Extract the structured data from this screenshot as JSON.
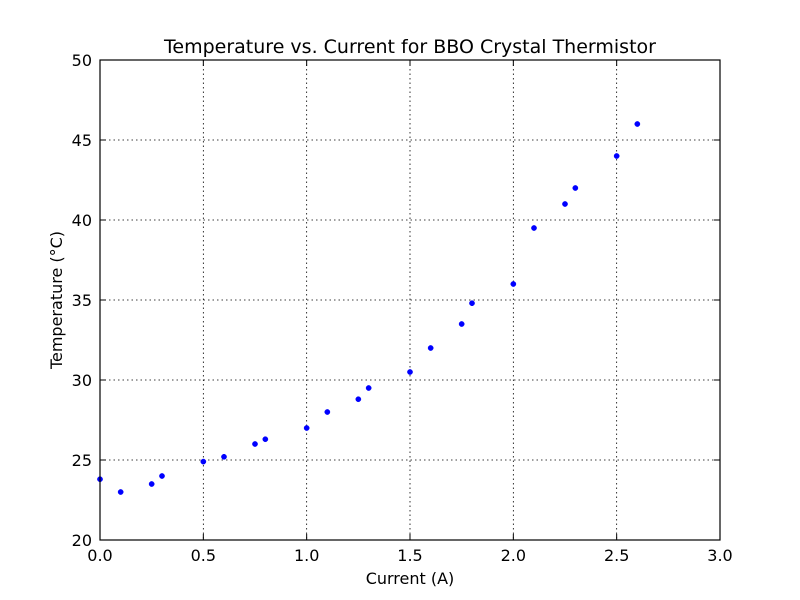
{
  "chart_data": {
    "type": "scatter",
    "title": "Temperature vs. Current for BBO Crystal Thermistor",
    "xlabel": "Current (A)",
    "ylabel": "Temperature (°C)",
    "xlim": [
      0.0,
      3.0
    ],
    "ylim": [
      20,
      50
    ],
    "xticks": [
      "0.0",
      "0.5",
      "1.0",
      "1.5",
      "2.0",
      "2.5",
      "3.0"
    ],
    "yticks": [
      "20",
      "25",
      "30",
      "35",
      "40",
      "45",
      "50"
    ],
    "grid": true,
    "marker_color": "#0000ff",
    "points": [
      {
        "x": 0.0,
        "y": 23.8
      },
      {
        "x": 0.1,
        "y": 23.0
      },
      {
        "x": 0.25,
        "y": 23.5
      },
      {
        "x": 0.3,
        "y": 24.0
      },
      {
        "x": 0.5,
        "y": 24.9
      },
      {
        "x": 0.6,
        "y": 25.2
      },
      {
        "x": 0.75,
        "y": 26.0
      },
      {
        "x": 0.8,
        "y": 26.3
      },
      {
        "x": 1.0,
        "y": 27.0
      },
      {
        "x": 1.1,
        "y": 28.0
      },
      {
        "x": 1.25,
        "y": 28.8
      },
      {
        "x": 1.3,
        "y": 29.5
      },
      {
        "x": 1.5,
        "y": 30.5
      },
      {
        "x": 1.6,
        "y": 32.0
      },
      {
        "x": 1.75,
        "y": 33.5
      },
      {
        "x": 1.8,
        "y": 34.8
      },
      {
        "x": 2.0,
        "y": 36.0
      },
      {
        "x": 2.1,
        "y": 39.5
      },
      {
        "x": 2.25,
        "y": 41.0
      },
      {
        "x": 2.3,
        "y": 42.0
      },
      {
        "x": 2.5,
        "y": 44.0
      },
      {
        "x": 2.6,
        "y": 46.0
      }
    ]
  }
}
